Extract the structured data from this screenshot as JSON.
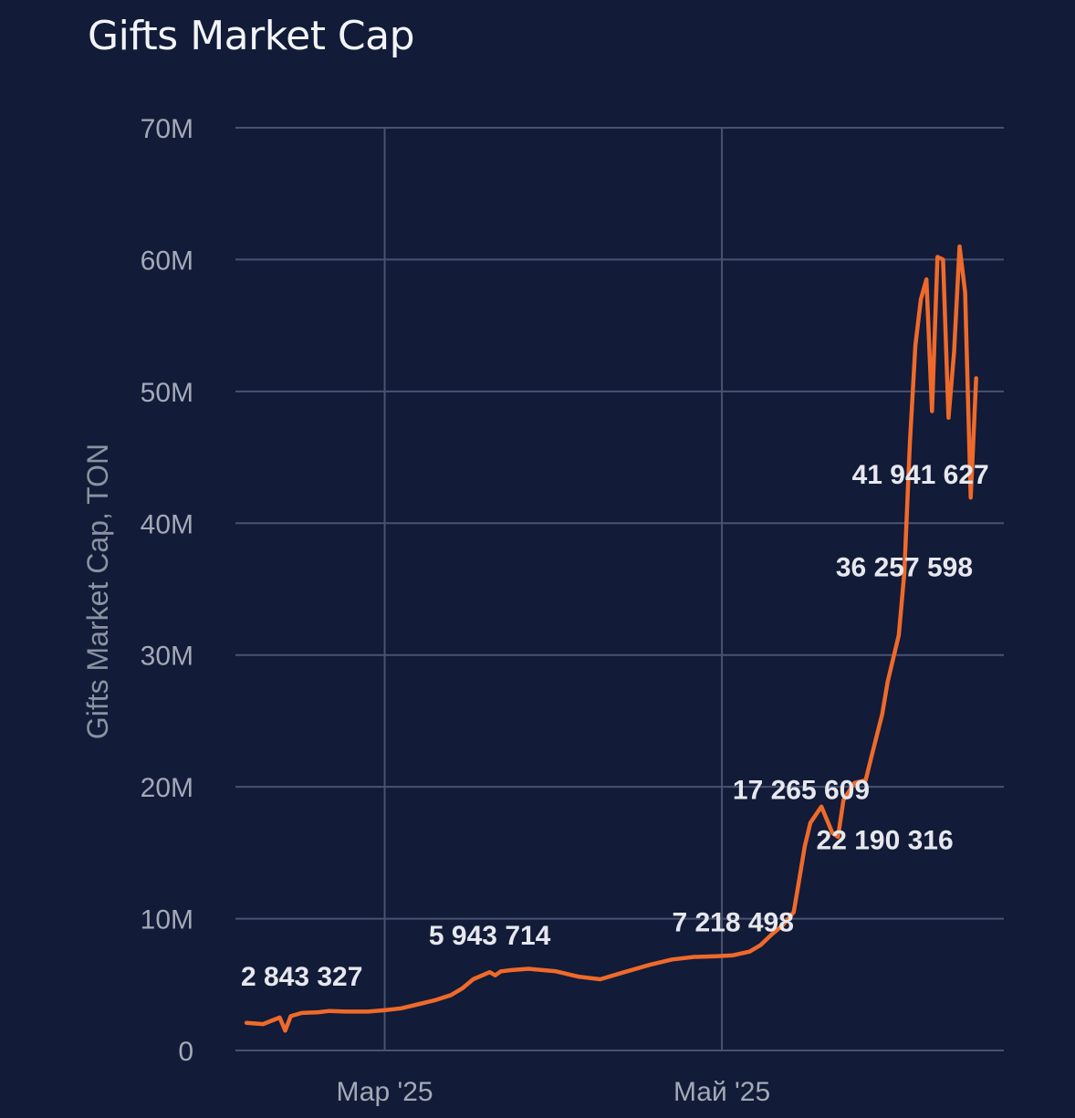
{
  "chart_data": {
    "type": "line",
    "title": "Gifts Market Cap",
    "ylabel": "Gifts Market Cap, TON",
    "xlabel": "",
    "ylim": [
      0,
      70000000
    ],
    "yticks": [
      0,
      10000000,
      20000000,
      30000000,
      40000000,
      50000000,
      60000000,
      70000000
    ],
    "ytick_labels": [
      "0",
      "10M",
      "20M",
      "30M",
      "40M",
      "50M",
      "60M",
      "70M"
    ],
    "xlim": [
      "2025-02-02",
      "2025-06-21"
    ],
    "xticks": [
      {
        "date": "2025-03-01",
        "label": "Мар '25"
      },
      {
        "date": "2025-05-01",
        "label": "Май '25"
      }
    ],
    "grid": true,
    "line_color": "#ef6a2a",
    "series": [
      {
        "values": [
          [
            "2025-02-04",
            2100000
          ],
          [
            "2025-02-07",
            2000000
          ],
          [
            "2025-02-10",
            2500000
          ],
          [
            "2025-02-11",
            1500000
          ],
          [
            "2025-02-12",
            2600000
          ],
          [
            "2025-02-14",
            2843327
          ],
          [
            "2025-02-17",
            2900000
          ],
          [
            "2025-02-19",
            3000000
          ],
          [
            "2025-02-22",
            2950000
          ],
          [
            "2025-02-26",
            2950000
          ],
          [
            "2025-03-01",
            3050000
          ],
          [
            "2025-03-04",
            3200000
          ],
          [
            "2025-03-07",
            3500000
          ],
          [
            "2025-03-10",
            3800000
          ],
          [
            "2025-03-13",
            4200000
          ],
          [
            "2025-03-15",
            4700000
          ],
          [
            "2025-03-17",
            5400000
          ],
          [
            "2025-03-20",
            5943714
          ],
          [
            "2025-03-21",
            5700000
          ],
          [
            "2025-03-22",
            6000000
          ],
          [
            "2025-03-24",
            6100000
          ],
          [
            "2025-03-27",
            6200000
          ],
          [
            "2025-04-01",
            6000000
          ],
          [
            "2025-04-05",
            5600000
          ],
          [
            "2025-04-09",
            5400000
          ],
          [
            "2025-04-13",
            5900000
          ],
          [
            "2025-04-18",
            6500000
          ],
          [
            "2025-04-22",
            6900000
          ],
          [
            "2025-04-26",
            7100000
          ],
          [
            "2025-04-30",
            7150000
          ],
          [
            "2025-05-03",
            7218498
          ],
          [
            "2025-05-06",
            7500000
          ],
          [
            "2025-05-08",
            8000000
          ],
          [
            "2025-05-10",
            8800000
          ],
          [
            "2025-05-12",
            9500000
          ],
          [
            "2025-05-14",
            10500000
          ],
          [
            "2025-05-15",
            13000000
          ],
          [
            "2025-05-16",
            15500000
          ],
          [
            "2025-05-17",
            17265609
          ],
          [
            "2025-05-19",
            18500000
          ],
          [
            "2025-05-21",
            16500000
          ],
          [
            "2025-05-22",
            16200000
          ],
          [
            "2025-05-23",
            19000000
          ],
          [
            "2025-05-25",
            20300000
          ],
          [
            "2025-05-27",
            20500000
          ],
          [
            "2025-05-28",
            22190316
          ],
          [
            "2025-05-30",
            25500000
          ],
          [
            "2025-05-31",
            28000000
          ],
          [
            "2025-06-02",
            31500000
          ],
          [
            "2025-06-03",
            36257598
          ],
          [
            "2025-06-04",
            46000000
          ],
          [
            "2025-06-05",
            53500000
          ],
          [
            "2025-06-06",
            57000000
          ],
          [
            "2025-06-07",
            58500000
          ],
          [
            "2025-06-08",
            48500000
          ],
          [
            "2025-06-09",
            60200000
          ],
          [
            "2025-06-10",
            60000000
          ],
          [
            "2025-06-11",
            48000000
          ],
          [
            "2025-06-12",
            53000000
          ],
          [
            "2025-06-13",
            61000000
          ],
          [
            "2025-06-14",
            57500000
          ],
          [
            "2025-06-15",
            41941627
          ],
          [
            "2025-06-16",
            51000000
          ]
        ]
      }
    ],
    "annotations": [
      {
        "text": "2 843 327",
        "date": "2025-02-14",
        "value": 2843327
      },
      {
        "text": "5 943 714",
        "date": "2025-03-20",
        "value": 5943714
      },
      {
        "text": "7 218 498",
        "date": "2025-05-03",
        "value": 7218498
      },
      {
        "text": "17 265 609",
        "date": "2025-05-17",
        "value": 17265609
      },
      {
        "text": "22 190 316",
        "date": "2025-05-28",
        "value": 22190316
      },
      {
        "text": "36 257 598",
        "date": "2025-06-03",
        "value": 36257598
      },
      {
        "text": "41 941 627",
        "date": "2025-06-15",
        "value": 41941627
      }
    ]
  }
}
